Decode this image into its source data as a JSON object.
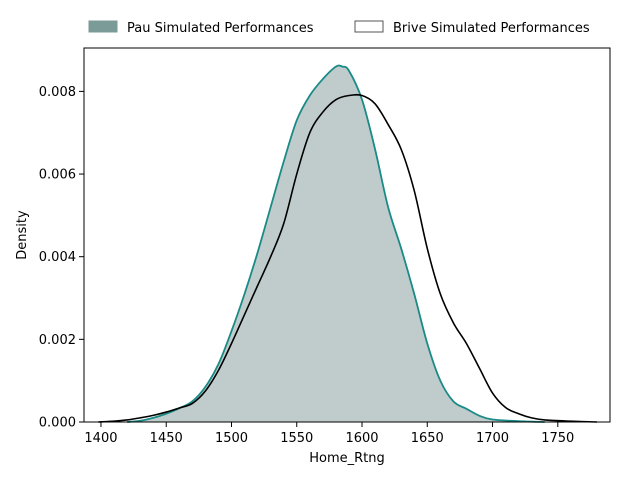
{
  "chart_data": {
    "type": "area",
    "title": "",
    "xlabel": "Home_Rtng",
    "ylabel": "Density",
    "xlim": [
      1387,
      1790
    ],
    "ylim": [
      0,
      0.00905
    ],
    "x_ticks": [
      1400,
      1450,
      1500,
      1550,
      1600,
      1650,
      1700,
      1750
    ],
    "x_tick_labels": [
      "1400",
      "1450",
      "1500",
      "1550",
      "1600",
      "1650",
      "1700",
      "1750"
    ],
    "y_ticks": [
      0,
      0.002,
      0.004,
      0.006,
      0.008
    ],
    "y_tick_labels": [
      "0.000",
      "0.002",
      "0.004",
      "0.006",
      "0.008"
    ],
    "legend_position": "top",
    "grid": false,
    "series": [
      {
        "name": "Pau Simulated Performances",
        "style": "filled",
        "fill_color": "#c0cccb",
        "line_color": "#1a8a87",
        "legend_swatch_color": "#7a9b98",
        "points": [
          [
            1420,
            0.0
          ],
          [
            1430,
            3e-05
          ],
          [
            1440,
            0.0001
          ],
          [
            1450,
            0.0002
          ],
          [
            1460,
            0.00033
          ],
          [
            1470,
            0.0005
          ],
          [
            1480,
            0.00085
          ],
          [
            1490,
            0.0014
          ],
          [
            1500,
            0.0022
          ],
          [
            1510,
            0.0031
          ],
          [
            1520,
            0.0041
          ],
          [
            1530,
            0.0052
          ],
          [
            1540,
            0.0063
          ],
          [
            1550,
            0.0073
          ],
          [
            1560,
            0.0079
          ],
          [
            1570,
            0.0083
          ],
          [
            1580,
            0.0086
          ],
          [
            1585,
            0.0086
          ],
          [
            1590,
            0.0085
          ],
          [
            1600,
            0.0078
          ],
          [
            1610,
            0.0066
          ],
          [
            1620,
            0.0052
          ],
          [
            1630,
            0.0042
          ],
          [
            1640,
            0.0031
          ],
          [
            1650,
            0.0019
          ],
          [
            1660,
            0.001
          ],
          [
            1670,
            0.0005
          ],
          [
            1680,
            0.00032
          ],
          [
            1690,
            0.00015
          ],
          [
            1700,
            6e-05
          ],
          [
            1720,
            2e-05
          ],
          [
            1740,
            0.0
          ]
        ]
      },
      {
        "name": "Brive Simulated Performances",
        "style": "line",
        "line_color": "#000000",
        "legend_swatch_color": "#ffffff",
        "points": [
          [
            1398,
            0.0
          ],
          [
            1410,
            2e-05
          ],
          [
            1420,
            5e-05
          ],
          [
            1430,
            0.0001
          ],
          [
            1440,
            0.00016
          ],
          [
            1450,
            0.00024
          ],
          [
            1460,
            0.00034
          ],
          [
            1470,
            0.00045
          ],
          [
            1480,
            0.00075
          ],
          [
            1490,
            0.00125
          ],
          [
            1500,
            0.0019
          ],
          [
            1510,
            0.0026
          ],
          [
            1520,
            0.0033
          ],
          [
            1530,
            0.004
          ],
          [
            1540,
            0.0048
          ],
          [
            1550,
            0.006
          ],
          [
            1560,
            0.007
          ],
          [
            1570,
            0.0075
          ],
          [
            1580,
            0.0078
          ],
          [
            1590,
            0.0079
          ],
          [
            1600,
            0.0079
          ],
          [
            1610,
            0.0077
          ],
          [
            1620,
            0.0072
          ],
          [
            1630,
            0.0066
          ],
          [
            1640,
            0.0056
          ],
          [
            1650,
            0.0042
          ],
          [
            1660,
            0.0031
          ],
          [
            1670,
            0.0024
          ],
          [
            1680,
            0.0019
          ],
          [
            1690,
            0.0013
          ],
          [
            1700,
            0.0007
          ],
          [
            1710,
            0.00035
          ],
          [
            1720,
            0.0002
          ],
          [
            1730,
            0.0001
          ],
          [
            1740,
            5e-05
          ],
          [
            1760,
            2e-05
          ],
          [
            1780,
            0.0
          ]
        ]
      }
    ]
  }
}
